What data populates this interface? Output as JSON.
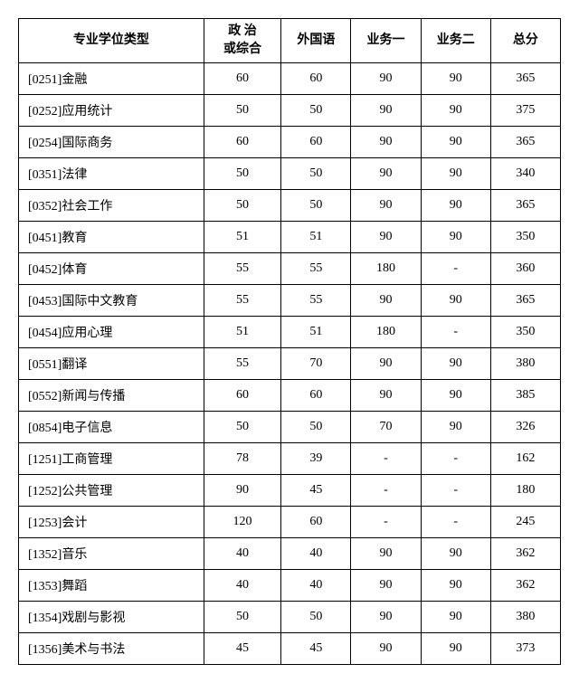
{
  "table": {
    "columns": [
      "专业学位类型",
      "政 治\n或综合",
      "外国语",
      "业务一",
      "业务二",
      "总分"
    ],
    "rows": [
      {
        "label": "[0251]金融",
        "cells": [
          "60",
          "60",
          "90",
          "90",
          "365"
        ]
      },
      {
        "label": "[0252]应用统计",
        "cells": [
          "50",
          "50",
          "90",
          "90",
          "375"
        ]
      },
      {
        "label": "[0254]国际商务",
        "cells": [
          "60",
          "60",
          "90",
          "90",
          "365"
        ]
      },
      {
        "label": "[0351]法律",
        "cells": [
          "50",
          "50",
          "90",
          "90",
          "340"
        ]
      },
      {
        "label": "[0352]社会工作",
        "cells": [
          "50",
          "50",
          "90",
          "90",
          "365"
        ]
      },
      {
        "label": "[0451]教育",
        "cells": [
          "51",
          "51",
          "90",
          "90",
          "350"
        ]
      },
      {
        "label": "[0452]体育",
        "cells": [
          "55",
          "55",
          "180",
          "-",
          "360"
        ]
      },
      {
        "label": "[0453]国际中文教育",
        "cells": [
          "55",
          "55",
          "90",
          "90",
          "365"
        ]
      },
      {
        "label": "[0454]应用心理",
        "cells": [
          "51",
          "51",
          "180",
          "-",
          "350"
        ]
      },
      {
        "label": "[0551]翻译",
        "cells": [
          "55",
          "70",
          "90",
          "90",
          "380"
        ]
      },
      {
        "label": "[0552]新闻与传播",
        "cells": [
          "60",
          "60",
          "90",
          "90",
          "385"
        ]
      },
      {
        "label": "[0854]电子信息",
        "cells": [
          "50",
          "50",
          "70",
          "90",
          "326"
        ]
      },
      {
        "label": "[1251]工商管理",
        "cells": [
          "78",
          "39",
          "-",
          "-",
          "162"
        ]
      },
      {
        "label": "[1252]公共管理",
        "cells": [
          "90",
          "45",
          "-",
          "-",
          "180"
        ]
      },
      {
        "label": "[1253]会计",
        "cells": [
          "120",
          "60",
          "-",
          "-",
          "245"
        ]
      },
      {
        "label": "[1352]音乐",
        "cells": [
          "40",
          "40",
          "90",
          "90",
          "362"
        ]
      },
      {
        "label": "[1353]舞蹈",
        "cells": [
          "40",
          "40",
          "90",
          "90",
          "362"
        ]
      },
      {
        "label": "[1354]戏剧与影视",
        "cells": [
          "50",
          "50",
          "90",
          "90",
          "380"
        ]
      },
      {
        "label": "[1356]美术与书法",
        "cells": [
          "45",
          "45",
          "90",
          "90",
          "373"
        ]
      }
    ]
  }
}
